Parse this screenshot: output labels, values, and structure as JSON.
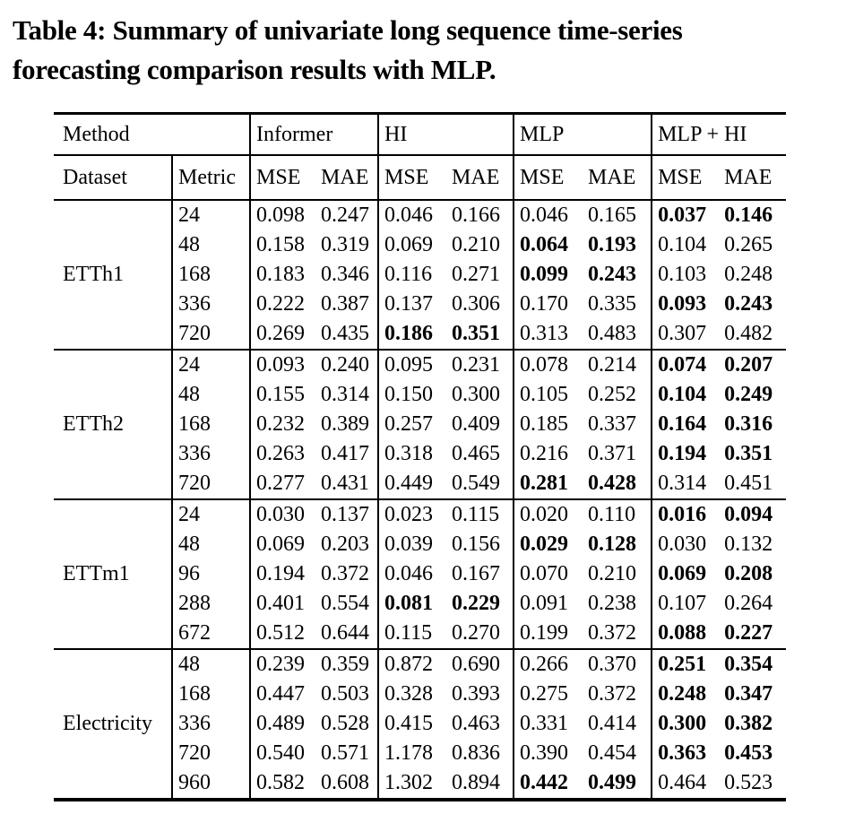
{
  "caption": {
    "lines": [
      "Table 4: Summary of univariate long sequence time-series",
      "forecasting comparison results with MLP."
    ]
  },
  "colors": {
    "background": "#ffffff",
    "text": "#000000",
    "rule": "#000000"
  },
  "table": {
    "header": {
      "method_label": "Method",
      "methods": [
        "Informer",
        "HI",
        "MLP",
        "MLP + HI"
      ],
      "dataset_label": "Dataset",
      "metric_label": "Metric",
      "subcols": [
        "MSE",
        "MAE",
        "MSE",
        "MAE",
        "MSE",
        "MAE",
        "MSE",
        "MAE"
      ]
    },
    "groups": [
      {
        "dataset": "ETTh1",
        "rows": [
          {
            "metric": "24",
            "values": [
              "0.098",
              "0.247",
              "0.046",
              "0.166",
              "0.046",
              "0.165",
              "0.037",
              "0.146"
            ],
            "bold": [
              6,
              7
            ]
          },
          {
            "metric": "48",
            "values": [
              "0.158",
              "0.319",
              "0.069",
              "0.210",
              "0.064",
              "0.193",
              "0.104",
              "0.265"
            ],
            "bold": [
              4,
              5
            ]
          },
          {
            "metric": "168",
            "values": [
              "0.183",
              "0.346",
              "0.116",
              "0.271",
              "0.099",
              "0.243",
              "0.103",
              "0.248"
            ],
            "bold": [
              4,
              5
            ]
          },
          {
            "metric": "336",
            "values": [
              "0.222",
              "0.387",
              "0.137",
              "0.306",
              "0.170",
              "0.335",
              "0.093",
              "0.243"
            ],
            "bold": [
              6,
              7
            ]
          },
          {
            "metric": "720",
            "values": [
              "0.269",
              "0.435",
              "0.186",
              "0.351",
              "0.313",
              "0.483",
              "0.307",
              "0.482"
            ],
            "bold": [
              2,
              3
            ]
          }
        ]
      },
      {
        "dataset": "ETTh2",
        "rows": [
          {
            "metric": "24",
            "values": [
              "0.093",
              "0.240",
              "0.095",
              "0.231",
              "0.078",
              "0.214",
              "0.074",
              "0.207"
            ],
            "bold": [
              6,
              7
            ]
          },
          {
            "metric": "48",
            "values": [
              "0.155",
              "0.314",
              "0.150",
              "0.300",
              "0.105",
              "0.252",
              "0.104",
              "0.249"
            ],
            "bold": [
              6,
              7
            ]
          },
          {
            "metric": "168",
            "values": [
              "0.232",
              "0.389",
              "0.257",
              "0.409",
              "0.185",
              "0.337",
              "0.164",
              "0.316"
            ],
            "bold": [
              6,
              7
            ]
          },
          {
            "metric": "336",
            "values": [
              "0.263",
              "0.417",
              "0.318",
              "0.465",
              "0.216",
              "0.371",
              "0.194",
              "0.351"
            ],
            "bold": [
              6,
              7
            ]
          },
          {
            "metric": "720",
            "values": [
              "0.277",
              "0.431",
              "0.449",
              "0.549",
              "0.281",
              "0.428",
              "0.314",
              "0.451"
            ],
            "bold": [
              4,
              5
            ]
          }
        ]
      },
      {
        "dataset": "ETTm1",
        "rows": [
          {
            "metric": "24",
            "values": [
              "0.030",
              "0.137",
              "0.023",
              "0.115",
              "0.020",
              "0.110",
              "0.016",
              "0.094"
            ],
            "bold": [
              6,
              7
            ]
          },
          {
            "metric": "48",
            "values": [
              "0.069",
              "0.203",
              "0.039",
              "0.156",
              "0.029",
              "0.128",
              "0.030",
              "0.132"
            ],
            "bold": [
              4,
              5
            ]
          },
          {
            "metric": "96",
            "values": [
              "0.194",
              "0.372",
              "0.046",
              "0.167",
              "0.070",
              "0.210",
              "0.069",
              "0.208"
            ],
            "bold": [
              6,
              7
            ]
          },
          {
            "metric": "288",
            "values": [
              "0.401",
              "0.554",
              "0.081",
              "0.229",
              "0.091",
              "0.238",
              "0.107",
              "0.264"
            ],
            "bold": [
              2,
              3
            ]
          },
          {
            "metric": "672",
            "values": [
              "0.512",
              "0.644",
              "0.115",
              "0.270",
              "0.199",
              "0.372",
              "0.088",
              "0.227"
            ],
            "bold": [
              6,
              7
            ]
          }
        ]
      },
      {
        "dataset": "Electricity",
        "rows": [
          {
            "metric": "48",
            "values": [
              "0.239",
              "0.359",
              "0.872",
              "0.690",
              "0.266",
              "0.370",
              "0.251",
              "0.354"
            ],
            "bold": [
              6,
              7
            ]
          },
          {
            "metric": "168",
            "values": [
              "0.447",
              "0.503",
              "0.328",
              "0.393",
              "0.275",
              "0.372",
              "0.248",
              "0.347"
            ],
            "bold": [
              6,
              7
            ]
          },
          {
            "metric": "336",
            "values": [
              "0.489",
              "0.528",
              "0.415",
              "0.463",
              "0.331",
              "0.414",
              "0.300",
              "0.382"
            ],
            "bold": [
              6,
              7
            ]
          },
          {
            "metric": "720",
            "values": [
              "0.540",
              "0.571",
              "1.178",
              "0.836",
              "0.390",
              "0.454",
              "0.363",
              "0.453"
            ],
            "bold": [
              6,
              7
            ]
          },
          {
            "metric": "960",
            "values": [
              "0.582",
              "0.608",
              "1.302",
              "0.894",
              "0.442",
              "0.499",
              "0.464",
              "0.523"
            ],
            "bold": [
              4,
              5
            ]
          }
        ]
      }
    ]
  }
}
